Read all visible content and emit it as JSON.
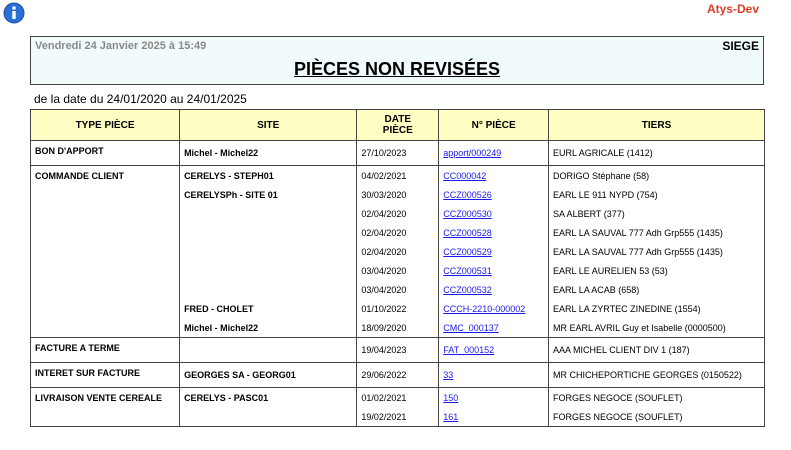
{
  "app_name": "Atys-Dev",
  "header": {
    "datetime": "Vendredi 24 Janvier 2025 à 15:49",
    "site": "SIEGE",
    "title": "PIÈCES NON REVISÉES"
  },
  "period": "de la date du 24/01/2020 au 24/01/2025",
  "table": {
    "columns": [
      "TYPE PIÈCE",
      "SITE",
      "DATE PIÈCE",
      "N° PIÈCE",
      "TIERS"
    ],
    "groups": [
      {
        "type": "BON D'APPORT",
        "rows": [
          {
            "site": "Michel - Michel22",
            "date": "27/10/2023",
            "piece": "apport/000249",
            "tiers": "EURL AGRICALE (1412)"
          }
        ]
      },
      {
        "type": "COMMANDE CLIENT",
        "rows": [
          {
            "site": "CERELYS - STEPH01",
            "date": "04/02/2021",
            "piece": "CC000042",
            "tiers": "DORIGO Stéphane (58)"
          },
          {
            "site": "CERELYSPh - SITE 01",
            "date": "30/03/2020",
            "piece": "CCZ000526",
            "tiers": "EARL LE 911 NYPD (754)"
          },
          {
            "site": null,
            "date": "02/04/2020",
            "piece": "CCZ000530",
            "tiers": "SA ALBERT (377)"
          },
          {
            "site": null,
            "date": "02/04/2020",
            "piece": "CCZ000528",
            "tiers": "EARL LA SAUVAL 777 Adh Grp555 (1435)"
          },
          {
            "site": null,
            "date": "02/04/2020",
            "piece": "CCZ000529",
            "tiers": "EARL LA SAUVAL 777 Adh Grp555 (1435)"
          },
          {
            "site": null,
            "date": "03/04/2020",
            "piece": "CCZ000531",
            "tiers": "EARL LE AURELIEN 53 (53)"
          },
          {
            "site": null,
            "date": "03/04/2020",
            "piece": "CCZ000532",
            "tiers": "EARL LA ACAB (658)"
          },
          {
            "site": "FRED - CHOLET",
            "date": "01/10/2022",
            "piece": "CCCH-2210-000002",
            "tiers": "EARL LA ZYRTEC ZINEDINE (1554)"
          },
          {
            "site": "Michel - Michel22",
            "date": "18/09/2020",
            "piece": "CMC_000137",
            "tiers": "MR EARL AVRIL Guy et Isabelle (0000500)"
          }
        ]
      },
      {
        "type": "FACTURE A TERME",
        "rows": [
          {
            "site": null,
            "date": "19/04/2023",
            "piece": "FAT_000152",
            "tiers": "AAA MICHEL CLIENT DIV 1 (187)"
          }
        ]
      },
      {
        "type": "INTERET SUR FACTURE",
        "rows": [
          {
            "site": "GEORGES SA - GEORG01",
            "date": "29/06/2022",
            "piece": "33",
            "tiers": "MR CHICHEPORTICHE GEORGES (0150522)"
          }
        ]
      },
      {
        "type": "LIVRAISON VENTE CEREALE",
        "rows": [
          {
            "site": "CERELYS - PASC01",
            "date": "01/02/2021",
            "piece": "150",
            "tiers": "FORGES NEGOCE (SOUFLET)"
          },
          {
            "site": null,
            "date": "19/02/2021",
            "piece": "161",
            "tiers": "FORGES NEGOCE (SOUFLET)"
          }
        ]
      }
    ]
  }
}
